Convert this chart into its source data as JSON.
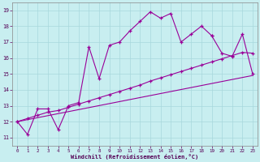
{
  "xlabel": "Windchill (Refroidissement éolien,°C)",
  "bg_color": "#c8eef0",
  "grid_color": "#a8d8dc",
  "line_color": "#990099",
  "xlim": [
    -0.5,
    23.5
  ],
  "ylim": [
    10.5,
    19.5
  ],
  "xticks": [
    0,
    1,
    2,
    3,
    4,
    5,
    6,
    7,
    8,
    9,
    10,
    11,
    12,
    13,
    14,
    15,
    16,
    17,
    18,
    19,
    20,
    21,
    22,
    23
  ],
  "yticks": [
    11,
    12,
    13,
    14,
    15,
    16,
    17,
    18,
    19
  ],
  "line1_x": [
    0,
    1,
    2,
    3,
    4,
    5,
    6,
    7,
    8,
    9,
    10,
    11,
    12,
    13,
    14,
    15,
    16,
    17,
    18,
    19
  ],
  "line1_y": [
    12.0,
    11.2,
    12.8,
    12.8,
    11.5,
    13.0,
    13.2,
    16.7,
    14.7,
    16.8,
    17.0,
    17.7,
    18.3,
    18.9,
    18.5,
    18.8,
    17.0,
    17.5,
    18.0,
    17.4
  ],
  "line2_x": [
    19,
    20,
    21,
    22,
    23
  ],
  "line2_y": [
    17.4,
    16.3,
    16.1,
    17.5,
    15.0
  ],
  "line3_x": [
    0,
    1,
    2,
    3,
    4,
    5,
    6,
    7,
    8,
    9,
    10,
    11,
    12,
    13,
    14,
    15,
    16,
    17,
    18,
    19,
    20,
    21,
    22,
    23
  ],
  "line3_y": [
    12.0,
    12.2,
    12.4,
    12.6,
    12.7,
    12.9,
    13.1,
    13.3,
    13.5,
    13.7,
    13.9,
    14.1,
    14.3,
    14.55,
    14.75,
    14.95,
    15.15,
    15.35,
    15.55,
    15.75,
    15.95,
    16.15,
    16.35,
    16.3
  ],
  "line4_x": [
    0,
    23
  ],
  "line4_y": [
    12.0,
    14.9
  ]
}
